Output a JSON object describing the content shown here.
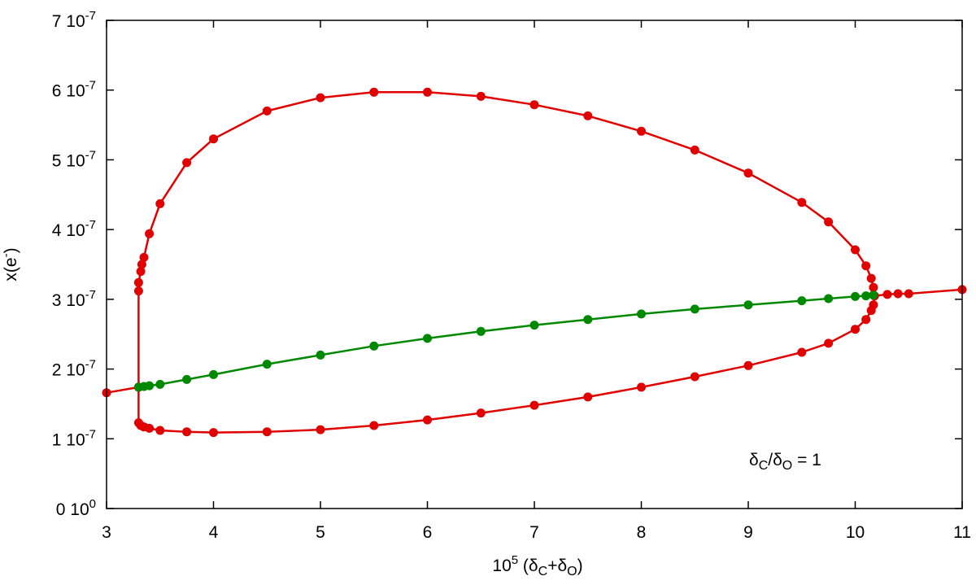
{
  "chart_data": {
    "type": "line",
    "xlabel": "10^5 (δC+δO)",
    "ylabel": "x(e-)",
    "xlim": [
      3,
      11
    ],
    "ylim": [
      0,
      7e-07
    ],
    "x_ticks": [
      {
        "value": 3,
        "label": "3"
      },
      {
        "value": 4,
        "label": "4"
      },
      {
        "value": 5,
        "label": "5"
      },
      {
        "value": 6,
        "label": "6"
      },
      {
        "value": 7,
        "label": "7"
      },
      {
        "value": 8,
        "label": "8"
      },
      {
        "value": 9,
        "label": "9"
      },
      {
        "value": 10,
        "label": "10"
      },
      {
        "value": 11,
        "label": "11"
      }
    ],
    "y_ticks": [
      {
        "value": 0,
        "mant": "0 10",
        "exp": "0"
      },
      {
        "value": 1e-07,
        "mant": "1 10",
        "exp": "-7"
      },
      {
        "value": 2e-07,
        "mant": "2 10",
        "exp": "-7"
      },
      {
        "value": 3e-07,
        "mant": "3 10",
        "exp": "-7"
      },
      {
        "value": 4e-07,
        "mant": "4 10",
        "exp": "-7"
      },
      {
        "value": 5e-07,
        "mant": "5 10",
        "exp": "-7"
      },
      {
        "value": 6e-07,
        "mant": "6 10",
        "exp": "-7"
      },
      {
        "value": 7e-07,
        "mant": "7 10",
        "exp": "-7"
      }
    ],
    "annotation": "δC/δO = 1",
    "grid": false,
    "series": [
      {
        "color": "#e00000",
        "points": [
          [
            3.0,
            1.66e-07
          ],
          [
            3.3,
            1.74e-07
          ],
          [
            3.3,
            1.23e-07
          ],
          [
            3.32,
            1.19e-07
          ],
          [
            3.35,
            1.17e-07
          ],
          [
            3.4,
            1.15e-07
          ],
          [
            3.5,
            1.12e-07
          ],
          [
            3.75,
            1.1e-07
          ],
          [
            4.0,
            1.09e-07
          ],
          [
            4.5,
            1.1e-07
          ],
          [
            5.0,
            1.13e-07
          ],
          [
            5.5,
            1.19e-07
          ],
          [
            6.0,
            1.27e-07
          ],
          [
            6.5,
            1.37e-07
          ],
          [
            7.0,
            1.48e-07
          ],
          [
            7.5,
            1.6e-07
          ],
          [
            8.0,
            1.74e-07
          ],
          [
            8.5,
            1.89e-07
          ],
          [
            9.0,
            2.05e-07
          ],
          [
            9.5,
            2.24e-07
          ],
          [
            9.75,
            2.37e-07
          ],
          [
            10.0,
            2.57e-07
          ],
          [
            10.1,
            2.71e-07
          ],
          [
            10.15,
            2.84e-07
          ],
          [
            10.17,
            2.92e-07
          ],
          [
            10.18,
            3.05e-07
          ],
          [
            10.3,
            3.07e-07
          ],
          [
            10.4,
            3.08e-07
          ],
          [
            10.5,
            3.08e-07
          ],
          [
            11.0,
            3.14e-07
          ]
        ]
      },
      {
        "color": "#e00000",
        "points": [
          [
            3.3,
            1.74e-07
          ],
          [
            3.3,
            3.12e-07
          ],
          [
            3.3,
            3.24e-07
          ],
          [
            3.32,
            3.4e-07
          ],
          [
            3.33,
            3.5e-07
          ],
          [
            3.35,
            3.6e-07
          ],
          [
            3.4,
            3.94e-07
          ],
          [
            3.5,
            4.37e-07
          ],
          [
            3.75,
            4.96e-07
          ],
          [
            4.0,
            5.3e-07
          ],
          [
            4.5,
            5.7e-07
          ],
          [
            5.0,
            5.89e-07
          ],
          [
            5.5,
            5.97e-07
          ],
          [
            6.0,
            5.97e-07
          ],
          [
            6.5,
            5.91e-07
          ],
          [
            7.0,
            5.79e-07
          ],
          [
            7.5,
            5.63e-07
          ],
          [
            8.0,
            5.41e-07
          ],
          [
            8.5,
            5.14e-07
          ],
          [
            9.0,
            4.81e-07
          ],
          [
            9.5,
            4.39e-07
          ],
          [
            9.75,
            4.11e-07
          ],
          [
            10.0,
            3.71e-07
          ],
          [
            10.1,
            3.48e-07
          ],
          [
            10.15,
            3.3e-07
          ],
          [
            10.17,
            3.17e-07
          ],
          [
            10.18,
            3.05e-07
          ]
        ]
      },
      {
        "color": "#008800",
        "points": [
          [
            3.3,
            1.74e-07
          ],
          [
            3.35,
            1.75e-07
          ],
          [
            3.4,
            1.76e-07
          ],
          [
            3.5,
            1.78e-07
          ],
          [
            3.75,
            1.85e-07
          ],
          [
            4.0,
            1.92e-07
          ],
          [
            4.5,
            2.07e-07
          ],
          [
            5.0,
            2.2e-07
          ],
          [
            5.5,
            2.33e-07
          ],
          [
            6.0,
            2.44e-07
          ],
          [
            6.5,
            2.54e-07
          ],
          [
            7.0,
            2.63e-07
          ],
          [
            7.5,
            2.71e-07
          ],
          [
            8.0,
            2.79e-07
          ],
          [
            8.5,
            2.86e-07
          ],
          [
            9.0,
            2.92e-07
          ],
          [
            9.5,
            2.98e-07
          ],
          [
            9.75,
            3.01e-07
          ],
          [
            10.0,
            3.04e-07
          ],
          [
            10.1,
            3.05e-07
          ],
          [
            10.17,
            3.06e-07
          ]
        ]
      }
    ]
  }
}
